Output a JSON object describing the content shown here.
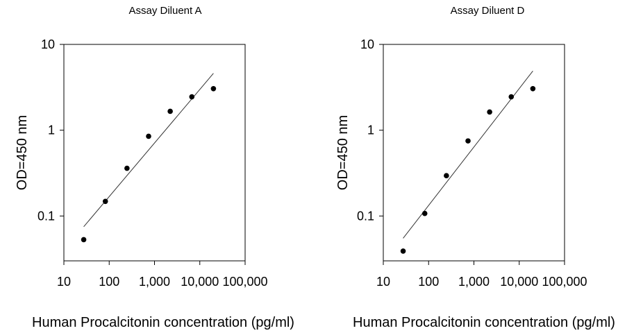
{
  "chart_data": [
    {
      "type": "scatter",
      "title": "Assay Diluent A",
      "xlabel": "Human Procalcitonin concentration (pg/ml)",
      "ylabel": "OD=450 nm",
      "x_scale": "log",
      "y_scale": "log",
      "xlim": [
        10,
        100000
      ],
      "ylim": [
        0.03,
        10
      ],
      "x_ticks": [
        {
          "value": 10,
          "label": "10"
        },
        {
          "value": 100,
          "label": "100"
        },
        {
          "value": 1000,
          "label": "1,000"
        },
        {
          "value": 10000,
          "label": "10,000"
        },
        {
          "value": 100000,
          "label": "100,000"
        }
      ],
      "y_ticks": [
        {
          "value": 0.1,
          "label": "0.1"
        },
        {
          "value": 1,
          "label": "1"
        },
        {
          "value": 10,
          "label": "10"
        }
      ],
      "grid": false,
      "marker_color": "#000000",
      "line_color": "#333333",
      "series": [
        {
          "x": [
            27.4,
            82.3,
            247,
            741,
            2222,
            6667,
            20000
          ],
          "y": [
            0.053,
            0.148,
            0.36,
            0.85,
            1.66,
            2.45,
            3.05
          ]
        }
      ],
      "fit_line": {
        "x": [
          27.4,
          20000
        ],
        "y": [
          0.075,
          4.6
        ]
      }
    },
    {
      "type": "scatter",
      "title": "Assay Diluent D",
      "xlabel": "Human Procalcitonin concentration (pg/ml)",
      "ylabel": "OD=450 nm",
      "x_scale": "log",
      "y_scale": "log",
      "xlim": [
        10,
        100000
      ],
      "ylim": [
        0.03,
        10
      ],
      "x_ticks": [
        {
          "value": 10,
          "label": "10"
        },
        {
          "value": 100,
          "label": "100"
        },
        {
          "value": 1000,
          "label": "1,000"
        },
        {
          "value": 10000,
          "label": "10,000"
        },
        {
          "value": 100000,
          "label": "100,000"
        }
      ],
      "y_ticks": [
        {
          "value": 0.1,
          "label": "0.1"
        },
        {
          "value": 1,
          "label": "1"
        },
        {
          "value": 10,
          "label": "10"
        }
      ],
      "grid": false,
      "marker_color": "#000000",
      "line_color": "#333333",
      "series": [
        {
          "x": [
            27.4,
            82.3,
            247,
            741,
            2222,
            6667,
            20000
          ],
          "y": [
            0.039,
            0.107,
            0.295,
            0.75,
            1.63,
            2.45,
            3.05
          ]
        }
      ],
      "fit_line": {
        "x": [
          27.4,
          20000
        ],
        "y": [
          0.055,
          4.9
        ]
      }
    }
  ]
}
